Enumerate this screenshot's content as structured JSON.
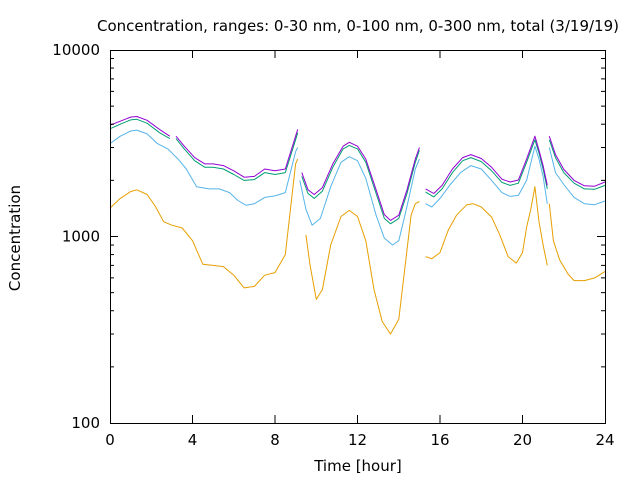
{
  "chart_data": {
    "type": "line",
    "title": "Concentration, ranges: 0-30 nm, 0-100 nm, 0-300 nm, total (3/19/19)",
    "xlabel": "Time [hour]",
    "ylabel": "Concentration",
    "xlim": [
      0,
      24
    ],
    "ylim": [
      100,
      10000
    ],
    "yscale": "log",
    "grid": false,
    "legend": "none",
    "x_ticks": [
      0,
      4,
      8,
      12,
      16,
      20,
      24
    ],
    "x_tick_labels": [
      "0",
      "4",
      "8",
      "12",
      "16",
      "20",
      "24"
    ],
    "y_ticks": [
      100,
      1000,
      10000
    ],
    "y_tick_labels": [
      "100",
      "1000",
      "10000"
    ],
    "series": [
      {
        "color": "#e69f00",
        "segments": [
          [
            [
              0,
              1420
            ],
            [
              0.5,
              1600
            ],
            [
              1,
              1740
            ],
            [
              1.3,
              1780
            ],
            [
              1.8,
              1680
            ],
            [
              2.2,
              1450
            ],
            [
              2.6,
              1200
            ],
            [
              3,
              1150
            ],
            [
              3.5,
              1110
            ],
            [
              4,
              950
            ],
            [
              4.5,
              710
            ],
            [
              5,
              700
            ],
            [
              5.5,
              690
            ],
            [
              6,
              620
            ],
            [
              6.5,
              530
            ],
            [
              7,
              540
            ],
            [
              7.5,
              620
            ],
            [
              8,
              640
            ],
            [
              8.5,
              800
            ],
            [
              9,
              2450
            ],
            [
              9.1,
              2600
            ]
          ],
          [
            [
              9.5,
              1020
            ],
            [
              9.7,
              700
            ],
            [
              10,
              460
            ],
            [
              10.3,
              520
            ],
            [
              10.7,
              900
            ],
            [
              11.2,
              1280
            ],
            [
              11.6,
              1380
            ],
            [
              12,
              1280
            ],
            [
              12.4,
              950
            ],
            [
              12.8,
              520
            ],
            [
              13.2,
              350
            ],
            [
              13.6,
              300
            ],
            [
              14,
              360
            ],
            [
              14.3,
              680
            ],
            [
              14.6,
              1300
            ],
            [
              14.8,
              1500
            ],
            [
              15,
              1540
            ]
          ],
          [
            [
              15.3,
              780
            ],
            [
              15.6,
              760
            ],
            [
              16,
              820
            ],
            [
              16.4,
              1080
            ],
            [
              16.8,
              1300
            ],
            [
              17.3,
              1480
            ],
            [
              17.6,
              1500
            ],
            [
              18,
              1440
            ],
            [
              18.5,
              1270
            ],
            [
              18.9,
              1020
            ],
            [
              19.3,
              780
            ],
            [
              19.7,
              720
            ],
            [
              20,
              820
            ],
            [
              20.2,
              1120
            ],
            [
              20.4,
              1400
            ],
            [
              20.6,
              1850
            ],
            [
              20.8,
              1200
            ],
            [
              21,
              900
            ],
            [
              21.2,
              700
            ]
          ],
          [
            [
              21.3,
              1500
            ],
            [
              21.5,
              950
            ],
            [
              21.8,
              750
            ],
            [
              22.2,
              630
            ],
            [
              22.5,
              580
            ],
            [
              23,
              580
            ],
            [
              23.5,
              600
            ],
            [
              24,
              650
            ]
          ]
        ]
      },
      {
        "color": "#56b4e9",
        "segments": [
          [
            [
              0,
              3150
            ],
            [
              0.5,
              3450
            ],
            [
              1,
              3680
            ],
            [
              1.3,
              3720
            ],
            [
              1.8,
              3550
            ],
            [
              2.3,
              3150
            ],
            [
              2.8,
              2950
            ],
            [
              3.3,
              2600
            ],
            [
              3.7,
              2300
            ],
            [
              4.2,
              1850
            ],
            [
              4.8,
              1800
            ],
            [
              5.3,
              1800
            ],
            [
              5.8,
              1720
            ],
            [
              6.2,
              1560
            ],
            [
              6.6,
              1470
            ],
            [
              7,
              1500
            ],
            [
              7.5,
              1620
            ],
            [
              8,
              1650
            ],
            [
              8.5,
              1720
            ],
            [
              9,
              2850
            ],
            [
              9.1,
              3000
            ]
          ],
          [
            [
              9.2,
              2000
            ],
            [
              9.5,
              1400
            ],
            [
              9.8,
              1150
            ],
            [
              10.2,
              1250
            ],
            [
              10.7,
              1850
            ],
            [
              11.2,
              2500
            ],
            [
              11.6,
              2680
            ],
            [
              12,
              2550
            ],
            [
              12.4,
              2050
            ],
            [
              12.9,
              1300
            ],
            [
              13.3,
              980
            ],
            [
              13.7,
              900
            ],
            [
              14,
              950
            ],
            [
              14.4,
              1450
            ],
            [
              14.8,
              2300
            ],
            [
              15,
              2600
            ]
          ],
          [
            [
              15.3,
              1500
            ],
            [
              15.6,
              1440
            ],
            [
              16,
              1600
            ],
            [
              16.5,
              1900
            ],
            [
              17,
              2200
            ],
            [
              17.5,
              2400
            ],
            [
              18,
              2300
            ],
            [
              18.5,
              2000
            ],
            [
              19,
              1720
            ],
            [
              19.4,
              1640
            ],
            [
              19.8,
              1660
            ],
            [
              20.2,
              2000
            ],
            [
              20.6,
              3050
            ],
            [
              20.8,
              2600
            ],
            [
              21,
              2100
            ],
            [
              21.2,
              1500
            ]
          ],
          [
            [
              21.3,
              3000
            ],
            [
              21.6,
              2200
            ],
            [
              22,
              1900
            ],
            [
              22.5,
              1620
            ],
            [
              23,
              1500
            ],
            [
              23.5,
              1480
            ],
            [
              24,
              1550
            ]
          ]
        ]
      },
      {
        "color": "#009e73",
        "segments": [
          [
            [
              0,
              3780
            ],
            [
              0.5,
              4000
            ],
            [
              1,
              4220
            ],
            [
              1.3,
              4250
            ],
            [
              1.8,
              4050
            ],
            [
              2.4,
              3600
            ],
            [
              2.9,
              3350
            ]
          ],
          [
            [
              3.2,
              3350
            ],
            [
              3.6,
              2950
            ],
            [
              4.1,
              2550
            ],
            [
              4.6,
              2350
            ],
            [
              5,
              2350
            ],
            [
              5.5,
              2300
            ],
            [
              6,
              2150
            ],
            [
              6.5,
              2000
            ],
            [
              7,
              2020
            ],
            [
              7.5,
              2200
            ],
            [
              8,
              2150
            ],
            [
              8.5,
              2200
            ],
            [
              9,
              3300
            ],
            [
              9.1,
              3600
            ]
          ],
          [
            [
              9.3,
              2100
            ],
            [
              9.6,
              1700
            ],
            [
              9.9,
              1600
            ],
            [
              10.3,
              1750
            ],
            [
              10.8,
              2350
            ],
            [
              11.3,
              2950
            ],
            [
              11.6,
              3080
            ],
            [
              12,
              2950
            ],
            [
              12.4,
              2500
            ],
            [
              12.9,
              1700
            ],
            [
              13.3,
              1250
            ],
            [
              13.6,
              1170
            ],
            [
              14,
              1250
            ],
            [
              14.4,
              1700
            ],
            [
              14.8,
              2500
            ],
            [
              15,
              2900
            ]
          ],
          [
            [
              15.3,
              1730
            ],
            [
              15.7,
              1630
            ],
            [
              16.1,
              1800
            ],
            [
              16.6,
              2200
            ],
            [
              17.1,
              2550
            ],
            [
              17.5,
              2650
            ],
            [
              18,
              2520
            ],
            [
              18.5,
              2250
            ],
            [
              19,
              1950
            ],
            [
              19.4,
              1880
            ],
            [
              19.8,
              1930
            ],
            [
              20.2,
              2500
            ],
            [
              20.6,
              3300
            ],
            [
              20.8,
              2800
            ],
            [
              21,
              2300
            ],
            [
              21.2,
              1800
            ]
          ],
          [
            [
              21.3,
              3300
            ],
            [
              21.6,
              2650
            ],
            [
              22,
              2200
            ],
            [
              22.5,
              1930
            ],
            [
              23,
              1800
            ],
            [
              23.5,
              1790
            ],
            [
              24,
              1880
            ]
          ]
        ]
      },
      {
        "color": "#9400d3",
        "segments": [
          [
            [
              0,
              3950
            ],
            [
              0.5,
              4150
            ],
            [
              1,
              4370
            ],
            [
              1.3,
              4400
            ],
            [
              1.8,
              4200
            ],
            [
              2.4,
              3750
            ],
            [
              2.9,
              3450
            ]
          ],
          [
            [
              3.2,
              3450
            ],
            [
              3.6,
              3050
            ],
            [
              4.1,
              2650
            ],
            [
              4.6,
              2450
            ],
            [
              5,
              2450
            ],
            [
              5.5,
              2400
            ],
            [
              6,
              2250
            ],
            [
              6.5,
              2080
            ],
            [
              7,
              2100
            ],
            [
              7.5,
              2300
            ],
            [
              8,
              2250
            ],
            [
              8.5,
              2300
            ],
            [
              9,
              3450
            ],
            [
              9.1,
              3750
            ]
          ],
          [
            [
              9.3,
              2200
            ],
            [
              9.6,
              1780
            ],
            [
              9.9,
              1680
            ],
            [
              10.3,
              1830
            ],
            [
              10.8,
              2450
            ],
            [
              11.3,
              3050
            ],
            [
              11.6,
              3200
            ],
            [
              12,
              3050
            ],
            [
              12.4,
              2600
            ],
            [
              12.9,
              1780
            ],
            [
              13.3,
              1310
            ],
            [
              13.6,
              1220
            ],
            [
              14,
              1300
            ],
            [
              14.4,
              1780
            ],
            [
              14.8,
              2600
            ],
            [
              15,
              3000
            ]
          ],
          [
            [
              15.3,
              1800
            ],
            [
              15.7,
              1700
            ],
            [
              16.1,
              1880
            ],
            [
              16.6,
              2300
            ],
            [
              17.1,
              2650
            ],
            [
              17.5,
              2750
            ],
            [
              18,
              2620
            ],
            [
              18.5,
              2350
            ],
            [
              19,
              2030
            ],
            [
              19.4,
              1960
            ],
            [
              19.8,
              2010
            ],
            [
              20.2,
              2600
            ],
            [
              20.6,
              3450
            ],
            [
              20.8,
              2900
            ],
            [
              21,
              2400
            ],
            [
              21.2,
              1880
            ]
          ],
          [
            [
              21.3,
              3450
            ],
            [
              21.6,
              2750
            ],
            [
              22,
              2290
            ],
            [
              22.5,
              2000
            ],
            [
              23,
              1870
            ],
            [
              23.5,
              1860
            ],
            [
              24,
              1960
            ]
          ]
        ]
      }
    ]
  }
}
